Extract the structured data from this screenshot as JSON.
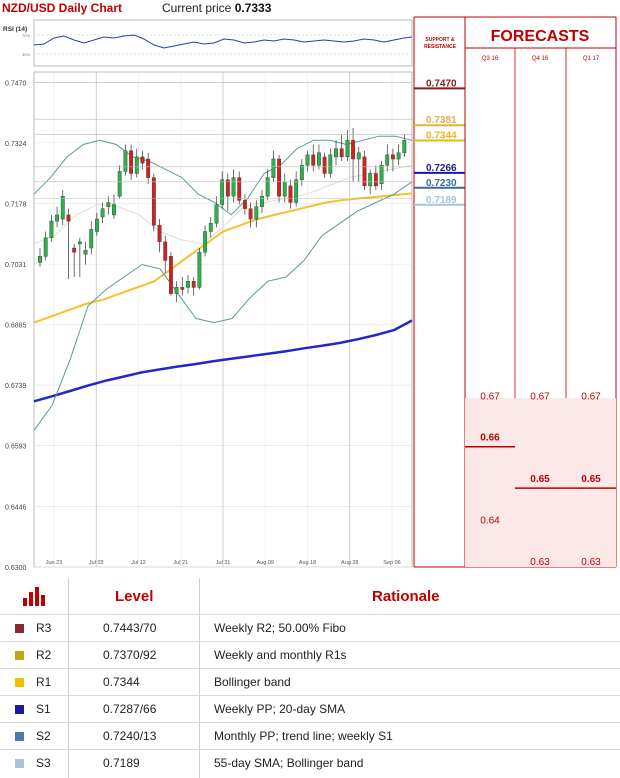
{
  "header": {
    "title": "NZD/USD Daily Chart",
    "current_price_label": "Current price",
    "current_price": "0.7333"
  },
  "rsi": {
    "label": "RSI (14)",
    "tick_high": "70%",
    "tick_low": "30%"
  },
  "chart_data": {
    "type": "candlestick",
    "title": "NZD/USD Daily Chart",
    "x_ticks": [
      "Jun 23",
      "Jul 03",
      "Jul 12",
      "Jul 21",
      "Jul 31",
      "Aug 09",
      "Aug 18",
      "Aug 28",
      "Sep 06"
    ],
    "y_ticks": [
      "0.7470",
      "0.7324",
      "0.7178",
      "0.7031",
      "0.6885",
      "0.6739",
      "0.6593",
      "0.6446",
      "0.6300"
    ],
    "ylim": [
      0.63,
      0.7495
    ],
    "candles": [
      [
        0.7035,
        0.705,
        0.7025,
        0.707
      ],
      [
        0.705,
        0.7095,
        0.704,
        0.711
      ],
      [
        0.7095,
        0.7135,
        0.7085,
        0.715
      ],
      [
        0.7135,
        0.715,
        0.712,
        0.717
      ],
      [
        0.714,
        0.7195,
        0.7125,
        0.721
      ],
      [
        0.715,
        0.7135,
        0.6995,
        0.7165
      ],
      [
        0.707,
        0.706,
        0.7,
        0.708
      ],
      [
        0.708,
        0.7085,
        0.7,
        0.7095
      ],
      [
        0.7055,
        0.7065,
        0.703,
        0.7085
      ],
      [
        0.707,
        0.7115,
        0.7055,
        0.7135
      ],
      [
        0.711,
        0.714,
        0.71,
        0.7155
      ],
      [
        0.7145,
        0.7165,
        0.713,
        0.718
      ],
      [
        0.717,
        0.718,
        0.715,
        0.7195
      ],
      [
        0.715,
        0.7175,
        0.714,
        0.72
      ],
      [
        0.7195,
        0.7255,
        0.719,
        0.727
      ],
      [
        0.7255,
        0.7305,
        0.7245,
        0.732
      ],
      [
        0.7305,
        0.725,
        0.7235,
        0.732
      ],
      [
        0.725,
        0.729,
        0.724,
        0.731
      ],
      [
        0.729,
        0.7275,
        0.726,
        0.7305
      ],
      [
        0.7285,
        0.724,
        0.7225,
        0.73
      ],
      [
        0.724,
        0.7125,
        0.711,
        0.725
      ],
      [
        0.7125,
        0.7085,
        0.706,
        0.714
      ],
      [
        0.7085,
        0.704,
        0.701,
        0.71
      ],
      [
        0.705,
        0.696,
        0.6955,
        0.706
      ],
      [
        0.696,
        0.6975,
        0.694,
        0.699
      ],
      [
        0.6975,
        0.697,
        0.6955,
        0.7
      ],
      [
        0.6975,
        0.699,
        0.696,
        0.7005
      ],
      [
        0.699,
        0.6975,
        0.6955,
        0.7
      ],
      [
        0.6975,
        0.706,
        0.697,
        0.707
      ],
      [
        0.706,
        0.711,
        0.705,
        0.7125
      ],
      [
        0.711,
        0.713,
        0.7095,
        0.7145
      ],
      [
        0.713,
        0.7175,
        0.712,
        0.7195
      ],
      [
        0.7175,
        0.7235,
        0.7165,
        0.7255
      ],
      [
        0.7235,
        0.7195,
        0.716,
        0.725
      ],
      [
        0.7195,
        0.724,
        0.718,
        0.726
      ],
      [
        0.724,
        0.7185,
        0.7175,
        0.7255
      ],
      [
        0.7185,
        0.7165,
        0.715,
        0.72
      ],
      [
        0.7165,
        0.714,
        0.712,
        0.718
      ],
      [
        0.714,
        0.717,
        0.712,
        0.7185
      ],
      [
        0.717,
        0.7195,
        0.7155,
        0.721
      ],
      [
        0.7195,
        0.724,
        0.7185,
        0.726
      ],
      [
        0.724,
        0.7285,
        0.723,
        0.7305
      ],
      [
        0.7285,
        0.7195,
        0.718,
        0.7295
      ],
      [
        0.7195,
        0.723,
        0.718,
        0.725
      ],
      [
        0.722,
        0.718,
        0.7165,
        0.7235
      ],
      [
        0.718,
        0.7235,
        0.717,
        0.7255
      ],
      [
        0.7235,
        0.727,
        0.722,
        0.7285
      ],
      [
        0.727,
        0.7295,
        0.7255,
        0.7305
      ],
      [
        0.7295,
        0.727,
        0.7255,
        0.732
      ],
      [
        0.727,
        0.73,
        0.726,
        0.732
      ],
      [
        0.729,
        0.725,
        0.724,
        0.73
      ],
      [
        0.725,
        0.7295,
        0.724,
        0.731
      ],
      [
        0.729,
        0.731,
        0.727,
        0.733
      ],
      [
        0.731,
        0.729,
        0.728,
        0.7345
      ],
      [
        0.729,
        0.733,
        0.728,
        0.7355
      ],
      [
        0.733,
        0.7285,
        0.723,
        0.736
      ],
      [
        0.7285,
        0.73,
        0.723,
        0.7315
      ],
      [
        0.729,
        0.722,
        0.721,
        0.7305
      ],
      [
        0.722,
        0.725,
        0.72,
        0.726
      ],
      [
        0.725,
        0.722,
        0.721,
        0.727
      ],
      [
        0.7225,
        0.727,
        0.721,
        0.728
      ],
      [
        0.727,
        0.7295,
        0.7255,
        0.732
      ],
      [
        0.7295,
        0.7285,
        0.7255,
        0.731
      ],
      [
        0.7285,
        0.73,
        0.727,
        0.732
      ],
      [
        0.73,
        0.733,
        0.729,
        0.7345
      ]
    ],
    "series": [
      {
        "color": "#f2c12e",
        "values": [
          0.689,
          0.6905,
          0.692,
          0.6935,
          0.6945,
          0.696,
          0.6975,
          0.699,
          0.702,
          0.705,
          0.708,
          0.711,
          0.7125,
          0.714,
          0.715,
          0.716,
          0.717,
          0.718,
          0.7186,
          0.719,
          0.7194,
          0.7198,
          0.7202
        ]
      },
      {
        "color": "#2427c8",
        "values": [
          0.67,
          0.6712,
          0.6725,
          0.6738,
          0.675,
          0.676,
          0.677,
          0.6777,
          0.6784,
          0.679,
          0.6797,
          0.6803,
          0.6809,
          0.6815,
          0.6821,
          0.6828,
          0.6834,
          0.6841,
          0.685,
          0.686,
          0.6872,
          0.6895
        ]
      },
      {
        "color": "#5a9a9a",
        "values": [
          0.72,
          0.724,
          0.729,
          0.732,
          0.733,
          0.732,
          0.729,
          0.728,
          0.726,
          0.724,
          0.72,
          0.718,
          0.715,
          0.719,
          0.725,
          0.727,
          0.731,
          0.733,
          0.733,
          0.732,
          0.733,
          0.734,
          0.734,
          0.733
        ]
      },
      {
        "color": "#5a9a9a",
        "values": [
          0.663,
          0.669,
          0.68,
          0.693,
          0.697,
          0.7,
          0.703,
          0.702,
          0.696,
          0.69,
          0.689,
          0.69,
          0.695,
          0.699,
          0.7,
          0.704,
          0.71,
          0.713,
          0.716,
          0.718,
          0.72,
          0.723
        ]
      },
      {
        "color": "#e3dccc",
        "values": [
          0.708,
          0.71,
          0.715,
          0.7175,
          0.717,
          0.715,
          0.711,
          0.709,
          0.708,
          0.712,
          0.717,
          0.718,
          0.719,
          0.72,
          0.722,
          0.724,
          0.725,
          0.726,
          0.727
        ]
      }
    ],
    "levels": [
      {
        "label": "0.7470",
        "value": 0.747,
        "color": "#8b1a1a"
      },
      {
        "label": "0.7381",
        "value": 0.7381,
        "color": "#e0b040"
      },
      {
        "label": "0.7344",
        "value": 0.7344,
        "color": "#e8b818"
      },
      {
        "label": "0.7266",
        "value": 0.7266,
        "color": "#1a1a9c"
      },
      {
        "label": "0.7230",
        "value": 0.723,
        "color": "#3a6a9a"
      },
      {
        "label": "0.7189",
        "value": 0.7189,
        "color": "#a8c4dc"
      }
    ],
    "forecasts": {
      "title": "FORECASTS",
      "columns": [
        "Q3 16",
        "Q4 16",
        "Q1 17"
      ],
      "cells": [
        [
          {
            "label": "0.67",
            "value": 0.67
          },
          {
            "label": "0.66",
            "value": 0.66,
            "bold": true
          },
          {
            "label": "0.64",
            "value": 0.64
          }
        ],
        [
          {
            "label": "0.67",
            "value": 0.67
          },
          {
            "label": "0.65",
            "value": 0.65,
            "bold": true
          },
          {
            "label": "0.63",
            "value": 0.63
          }
        ],
        [
          {
            "label": "0.67",
            "value": 0.67
          },
          {
            "label": "0.65",
            "value": 0.65,
            "bold": true
          },
          {
            "label": "0.63",
            "value": 0.63
          }
        ]
      ]
    },
    "support_resistance_label": [
      "SUPPORT &",
      "RESISTANCE"
    ]
  },
  "table": {
    "col_level": "Level",
    "col_rationale": "Rationale",
    "icon": "bar-chart-icon",
    "rows": [
      {
        "name": "R3",
        "level": "0.7443/70",
        "rationale": "Weekly R2; 50.00% Fibo",
        "color": "#8b2a2a"
      },
      {
        "name": "R2",
        "level": "0.7370/92",
        "rationale": "Weekly and monthly R1s",
        "color": "#c8a020"
      },
      {
        "name": "R1",
        "level": "0.7344",
        "rationale": "Bollinger band",
        "color": "#f0c000"
      },
      {
        "name": "S1",
        "level": "0.7287/66",
        "rationale": "Weekly PP; 20-day SMA",
        "color": "#1a1a9c"
      },
      {
        "name": "S2",
        "level": "0.7240/13",
        "rationale": "Monthly PP; trend line; weekly S1",
        "color": "#4a7ab0"
      },
      {
        "name": "S3",
        "level": "0.7189",
        "rationale": "55-day SMA; Bollinger band",
        "color": "#a8c4dc"
      }
    ]
  }
}
